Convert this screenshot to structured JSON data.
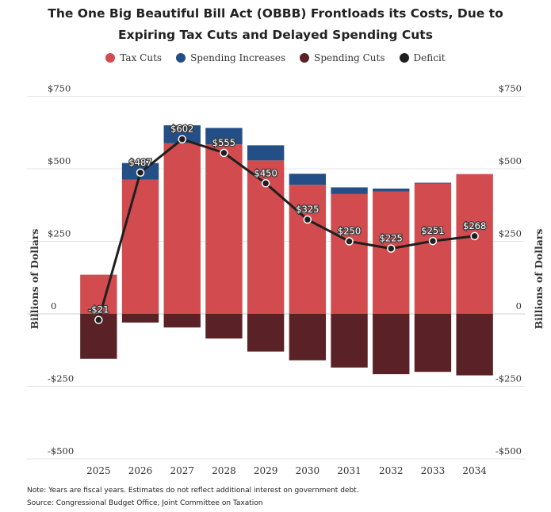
{
  "title_line1": "The One Big Beautiful Bill Act (OBBB) Frontloads its Costs, Due to",
  "title_line2": "Expiring Tax Cuts and Delayed Spending Cuts",
  "legend": [
    {
      "label": "Tax Cuts",
      "color": "#d14b4f"
    },
    {
      "label": "Spending Increases",
      "color": "#244f86"
    },
    {
      "label": "Spending Cuts",
      "color": "#5a2226"
    },
    {
      "label": "Deficit",
      "color": "#1f1f1f"
    }
  ],
  "note": "Note: Years are fiscal years. Estimates do not reflect additional interest on government debt.",
  "source": "Source: Congressional Budget Office, Joint Committee on Taxation",
  "chart_data": {
    "type": "bar",
    "stacked": true,
    "categories": [
      "2025",
      "2026",
      "2027",
      "2028",
      "2029",
      "2030",
      "2031",
      "2032",
      "2033",
      "2034"
    ],
    "series": [
      {
        "name": "Tax Cuts",
        "color": "#d14b4f",
        "values": [
          135,
          463,
          588,
          584,
          529,
          445,
          413,
          422,
          449,
          482
        ]
      },
      {
        "name": "Spending Increases",
        "color": "#244f86",
        "values": [
          0,
          57,
          62,
          57,
          52,
          38,
          23,
          10,
          3,
          0
        ]
      },
      {
        "name": "Spending Cuts",
        "color": "#5a2226",
        "values": [
          -155,
          -30,
          -47,
          -85,
          -130,
          -160,
          -185,
          -208,
          -200,
          -212
        ]
      }
    ],
    "line": {
      "name": "Deficit",
      "color": "#1f1f1f",
      "values": [
        -21,
        487,
        602,
        555,
        450,
        325,
        250,
        225,
        251,
        268
      ],
      "labels": [
        "-$21",
        "$487",
        "$602",
        "$555",
        "$450",
        "$325",
        "$250",
        "$225",
        "$251",
        "$268"
      ]
    },
    "yticks": [
      750,
      500,
      250,
      0,
      -250,
      -500
    ],
    "ytick_labels": [
      "$750",
      "$500",
      "$250",
      "0",
      "-$250",
      "-$500"
    ],
    "ylabel": "Billions of Dollars",
    "ylim": [
      -500,
      750
    ],
    "grid": true
  }
}
